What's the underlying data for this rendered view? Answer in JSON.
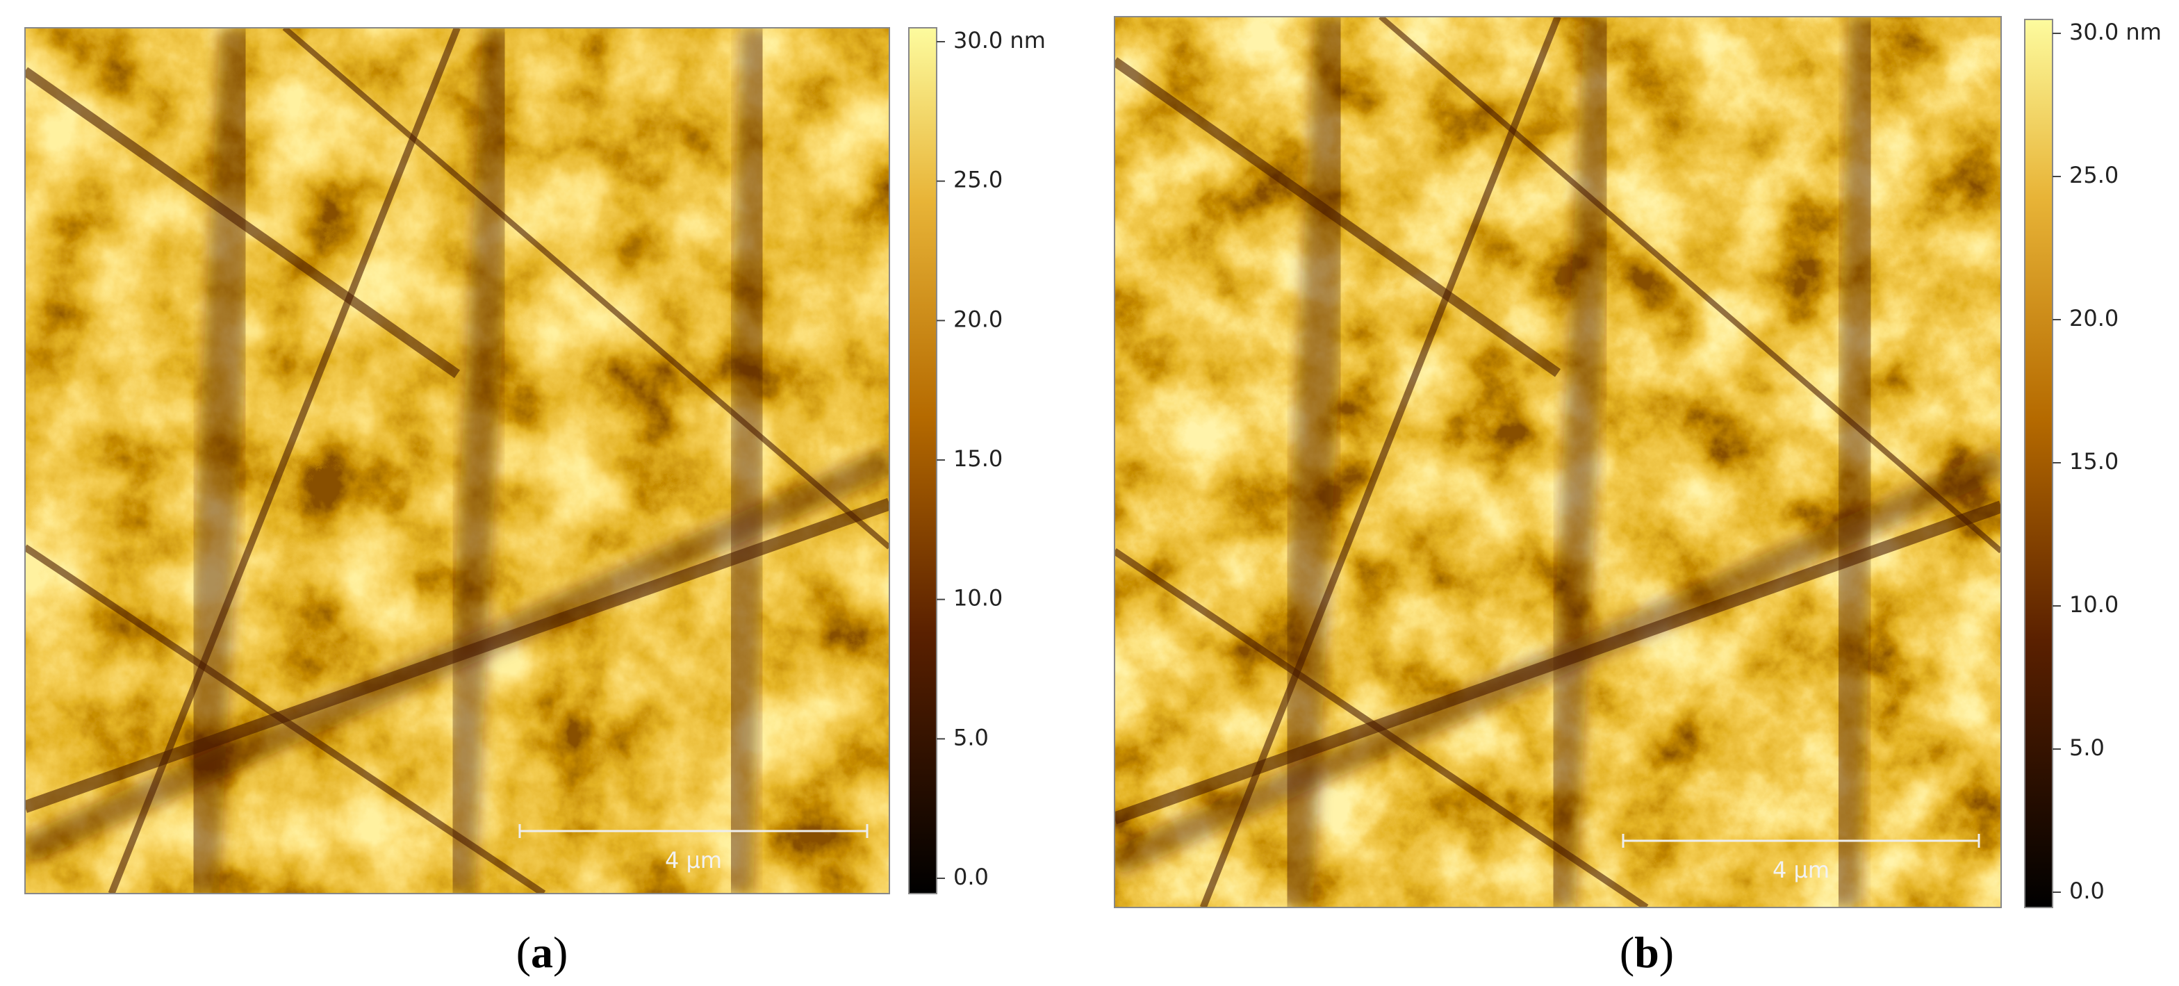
{
  "panels": [
    {
      "caption": "(a)",
      "scale_bar": "4 µm",
      "colorbar": {
        "ticks": [
          {
            "value": 0,
            "label": "0.0"
          },
          {
            "value": 5,
            "label": "5.0"
          },
          {
            "value": 10,
            "label": "10.0"
          },
          {
            "value": 15,
            "label": "15.0"
          },
          {
            "value": 20,
            "label": "20.0"
          },
          {
            "value": 25,
            "label": "25.0"
          },
          {
            "value": 30,
            "label": "30.0 nm"
          }
        ]
      }
    },
    {
      "caption": "(b)",
      "scale_bar": "4 µm",
      "colorbar": {
        "ticks": [
          {
            "value": 0,
            "label": "0.0"
          },
          {
            "value": 5,
            "label": "5.0"
          },
          {
            "value": 10,
            "label": "10.0"
          },
          {
            "value": 15,
            "label": "15.0"
          },
          {
            "value": 20,
            "label": "20.0"
          },
          {
            "value": 25,
            "label": "25.0"
          },
          {
            "value": 30,
            "label": "30.0 nm"
          }
        ]
      }
    }
  ]
}
